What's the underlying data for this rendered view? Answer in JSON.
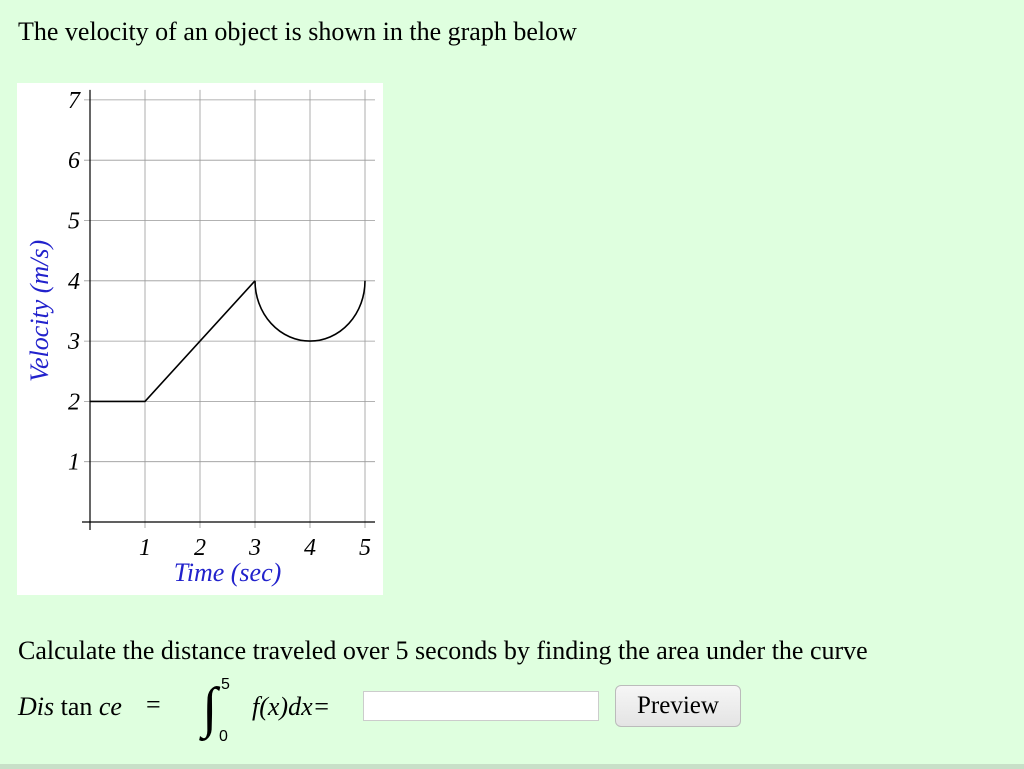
{
  "question": {
    "intro": "The velocity of an object is shown in the graph below",
    "instruction": "Calculate the distance traveled over 5 seconds by finding the area under the curve"
  },
  "formula": {
    "lhs_italic_1": "Dis",
    "lhs_upright": " tan ",
    "lhs_italic_2": "ce",
    "equals": "=",
    "integral_sign": "∫",
    "upper_limit": "5",
    "lower_limit": "0",
    "integrand": "f(x)dx=",
    "answer_value": "",
    "preview_label": "Preview"
  },
  "chart_data": {
    "type": "line",
    "xlabel": "Time (sec)",
    "ylabel": "Velocity (m/s)",
    "xlim": [
      0,
      5
    ],
    "ylim": [
      0,
      7
    ],
    "xticks": [
      "1",
      "2",
      "3",
      "4",
      "5"
    ],
    "yticks": [
      "1",
      "2",
      "3",
      "4",
      "5",
      "6",
      "7"
    ],
    "grid": true,
    "label_color": "#2222cc",
    "segments": [
      {
        "kind": "line",
        "points": [
          [
            0,
            2
          ],
          [
            1,
            2
          ],
          [
            3,
            4
          ]
        ]
      },
      {
        "kind": "semicircle-lower",
        "center": [
          4,
          4
        ],
        "radius": 1,
        "from": [
          3,
          4
        ],
        "to": [
          5,
          4
        ]
      }
    ]
  }
}
